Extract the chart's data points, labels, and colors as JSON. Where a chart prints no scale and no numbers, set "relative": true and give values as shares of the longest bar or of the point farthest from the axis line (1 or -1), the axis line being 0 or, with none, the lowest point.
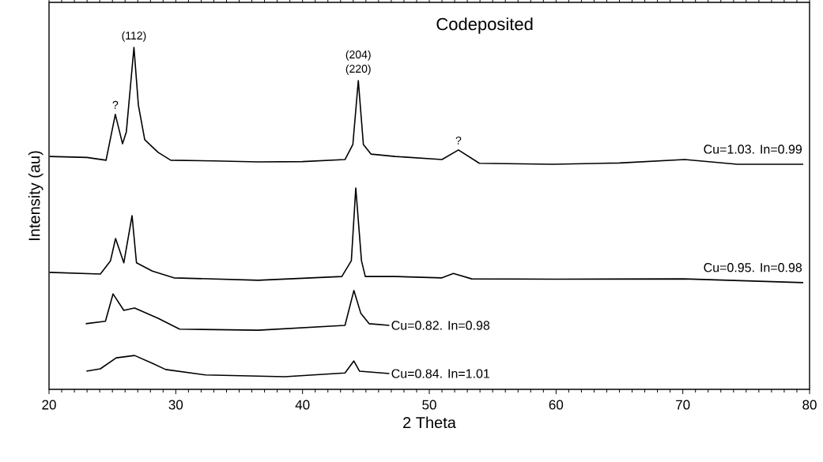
{
  "chart_data": {
    "type": "line",
    "title": "Codeposited",
    "xlabel": "2 Theta",
    "ylabel": "Intensity (au)",
    "relative": true,
    "xlim": [
      20,
      80
    ],
    "xticks": [
      20,
      30,
      40,
      50,
      60,
      70,
      80
    ],
    "series": [
      {
        "name": "Cu=1.03. In=0.99",
        "color": "#000000",
        "x": [
          20.05,
          23.0,
          24.5,
          25.23,
          25.8,
          26.1,
          26.7,
          27.05,
          27.55,
          28.6,
          29.6,
          33.0,
          36.5,
          40.0,
          43.35,
          43.97,
          44.4,
          44.8,
          45.4,
          47.3,
          51.0,
          52.3,
          53.95,
          59.75,
          65.0,
          70.15,
          74.3,
          79.5
        ],
        "values": [
          0.681,
          0.678,
          0.67,
          0.804,
          0.718,
          0.753,
          1.0,
          0.831,
          0.73,
          0.693,
          0.67,
          0.668,
          0.665,
          0.666,
          0.672,
          0.716,
          0.903,
          0.716,
          0.688,
          0.681,
          0.672,
          0.7,
          0.661,
          0.658,
          0.662,
          0.672,
          0.658,
          0.658
        ]
      },
      {
        "name": "Cu=0.95. In=0.98",
        "color": "#000000",
        "x": [
          20.05,
          24.05,
          24.85,
          25.25,
          25.9,
          26.55,
          26.9,
          28.15,
          29.85,
          36.5,
          43.1,
          43.85,
          44.2,
          44.65,
          44.95,
          47.3,
          51.0,
          51.9,
          53.35,
          60.0,
          70.1,
          79.5
        ],
        "values": [
          0.342,
          0.337,
          0.376,
          0.441,
          0.37,
          0.508,
          0.37,
          0.346,
          0.326,
          0.319,
          0.33,
          0.376,
          0.589,
          0.376,
          0.33,
          0.33,
          0.326,
          0.339,
          0.323,
          0.322,
          0.323,
          0.312
        ]
      },
      {
        "name": "Cu=0.82. In=0.98",
        "color": "#000000",
        "x": [
          22.9,
          24.45,
          25.05,
          25.9,
          26.75,
          28.6,
          30.3,
          36.5,
          43.35,
          44.05,
          44.6,
          45.25,
          46.85
        ],
        "values": [
          0.192,
          0.199,
          0.279,
          0.231,
          0.238,
          0.208,
          0.176,
          0.173,
          0.187,
          0.289,
          0.222,
          0.192,
          0.187
        ]
      },
      {
        "name": "Cu=0.84. In=1.01",
        "color": "#000000",
        "x": [
          22.95,
          24.05,
          25.3,
          26.75,
          28.15,
          29.2,
          32.35,
          38.6,
          43.35,
          44.05,
          44.5,
          46.85
        ],
        "values": [
          0.053,
          0.06,
          0.092,
          0.099,
          0.076,
          0.058,
          0.042,
          0.037,
          0.048,
          0.083,
          0.053,
          0.046
        ]
      }
    ],
    "annotations": [
      {
        "text": "?",
        "x": 25.23,
        "y": 0.804
      },
      {
        "text": "(112)",
        "x": 26.7,
        "y": 1.0
      },
      {
        "text": "(220)",
        "x": 44.4,
        "y": 0.903
      },
      {
        "text": "(204)",
        "x": 44.4,
        "y": 0.903
      },
      {
        "text": "?",
        "x": 52.3,
        "y": 0.7
      }
    ]
  }
}
